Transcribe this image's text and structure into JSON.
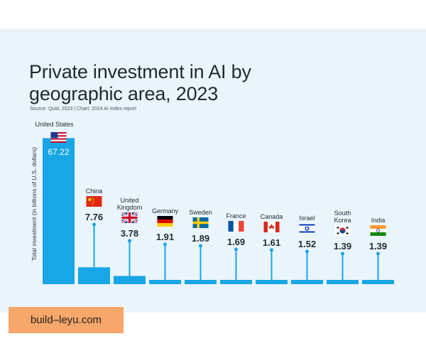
{
  "chart_data": {
    "type": "bar",
    "title": "Private investment in AI by geographic area, 2023",
    "source": "Source: Quid, 2023 | Chart: 2024 AI Index report",
    "ylabel": "Total investment (in billions of U.S. dollars)",
    "xlabel": "",
    "categories": [
      "United States",
      "China",
      "United Kingdom",
      "Germany",
      "Sweden",
      "France",
      "Canada",
      "Israel",
      "South Korea",
      "India"
    ],
    "values": [
      67.22,
      7.76,
      3.78,
      1.91,
      1.89,
      1.69,
      1.61,
      1.52,
      1.39,
      1.39
    ],
    "value_labels": [
      "67.22",
      "7.76",
      "3.78",
      "1.91",
      "1.89",
      "1.69",
      "1.61",
      "1.52",
      "1.39",
      "1.39"
    ],
    "flags": [
      "us-flag-icon",
      "china-flag-icon",
      "uk-flag-icon",
      "germany-flag-icon",
      "sweden-flag-icon",
      "france-flag-icon",
      "canada-flag-icon",
      "israel-flag-icon",
      "south-korea-flag-icon",
      "india-flag-icon"
    ],
    "ylim": [
      0,
      70
    ],
    "bar_color": "#18a6e6",
    "value_color": "#1f2a36",
    "highlight_value_color": "#ffffff"
  },
  "watermark": "build–leyu.com"
}
